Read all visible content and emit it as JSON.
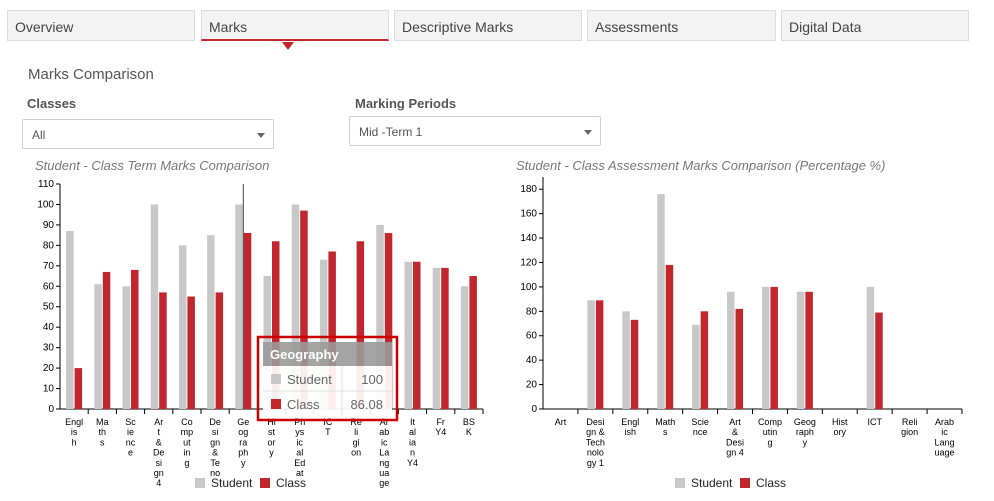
{
  "tabs": [
    {
      "label": "Overview",
      "active": false
    },
    {
      "label": "Marks",
      "active": true
    },
    {
      "label": "Descriptive Marks",
      "active": false
    },
    {
      "label": "Assessments",
      "active": false
    },
    {
      "label": "Digital Data",
      "active": false
    }
  ],
  "page_title": "Marks Comparison",
  "filters": {
    "classes_label": "Classes",
    "classes_value": "All",
    "periods_label": "Marking Periods",
    "periods_value": "Mid -Term 1"
  },
  "colors": {
    "student": "#c8c8c8",
    "class": "#c1272d",
    "accent": "#c1272d"
  },
  "tooltip": {
    "title": "Geography",
    "rows": [
      {
        "label": "Student",
        "value": "100"
      },
      {
        "label": "Class",
        "value": "86.08"
      }
    ]
  },
  "chart_data": [
    {
      "type": "bar",
      "title": "Student - Class Term Marks Comparison",
      "categories": [
        "English",
        "Maths",
        "Science",
        "Art & Design 4",
        "Computing",
        "Design & Techno",
        "Geography",
        "History",
        "Physical Education",
        "ICT",
        "Religion",
        "Arabic Language",
        "Italian Y4",
        "Fr Y4",
        "BSK"
      ],
      "category_labels": [
        [
          "Engl",
          "is",
          "h"
        ],
        [
          "Ma",
          "th",
          "s"
        ],
        [
          "Sc",
          "ie",
          "nc",
          "e"
        ],
        [
          "Ar",
          "t",
          "&",
          "De",
          "si",
          "gn",
          "4"
        ],
        [
          "Co",
          "mp",
          "ut",
          "in",
          "g"
        ],
        [
          "De",
          "si",
          "gn",
          "&",
          "Te",
          "no"
        ],
        [
          "Ge",
          "og",
          "ra",
          "ph",
          "y"
        ],
        [
          "Hi",
          "st",
          "or",
          "y"
        ],
        [
          "Ph",
          "ys",
          "ic",
          "al",
          "Ed",
          "at"
        ],
        [
          "IC",
          "T"
        ],
        [
          "Re",
          "li",
          "gi",
          "on"
        ],
        [
          "Ar",
          "ab",
          "ic",
          "La",
          "ng",
          "ua",
          "ge"
        ],
        [
          "It",
          "al",
          "ia",
          "n",
          "Y4"
        ],
        [
          "Fr",
          "Y4"
        ],
        [
          "BS",
          "K"
        ]
      ],
      "series": [
        {
          "name": "Student",
          "values": [
            87,
            61,
            60,
            100,
            80,
            85,
            100,
            65,
            100,
            73,
            0,
            90,
            72,
            69,
            60
          ]
        },
        {
          "name": "Class",
          "values": [
            20,
            67,
            68,
            57,
            55,
            57,
            86.08,
            82,
            97,
            77,
            82,
            86,
            72,
            69,
            65
          ]
        }
      ],
      "yticks": [
        0,
        10,
        20,
        30,
        40,
        50,
        60,
        70,
        80,
        90,
        100,
        110
      ],
      "ylim": [
        0,
        110
      ],
      "legend": "bottom"
    },
    {
      "type": "bar",
      "title": "Student - Class Assessment Marks Comparison (Percentage %)",
      "categories": [
        "Art",
        "Design & Technology 1",
        "English",
        "Maths",
        "Science",
        "Art & Design 4",
        "Computing",
        "Geography",
        "History",
        "ICT",
        "Religion",
        "Arabic Language"
      ],
      "category_labels": [
        [
          "Art"
        ],
        [
          "Desi",
          "gn &",
          "Tech",
          "nolo",
          "gy 1"
        ],
        [
          "Engl",
          "ish"
        ],
        [
          "Math",
          "s"
        ],
        [
          "Scie",
          "nce"
        ],
        [
          "Art",
          "&",
          "Desi",
          "gn 4"
        ],
        [
          "Comp",
          "utin",
          "g"
        ],
        [
          "Geog",
          "raph",
          "y"
        ],
        [
          "Hist",
          "ory"
        ],
        [
          "ICT"
        ],
        [
          "Reli",
          "gion"
        ],
        [
          "Arab",
          "ic",
          "Lang",
          "uage"
        ]
      ],
      "series": [
        {
          "name": "Student",
          "values": [
            0,
            89,
            80,
            176,
            69,
            96,
            100,
            96,
            0,
            100,
            0,
            0
          ]
        },
        {
          "name": "Class",
          "values": [
            0,
            89,
            73,
            118,
            80,
            82,
            100,
            96,
            0,
            79,
            0,
            0
          ]
        }
      ],
      "yticks": [
        0,
        20,
        40,
        60,
        80,
        100,
        120,
        140,
        160,
        180
      ],
      "ylim": [
        0,
        190
      ],
      "legend": "bottom"
    }
  ]
}
